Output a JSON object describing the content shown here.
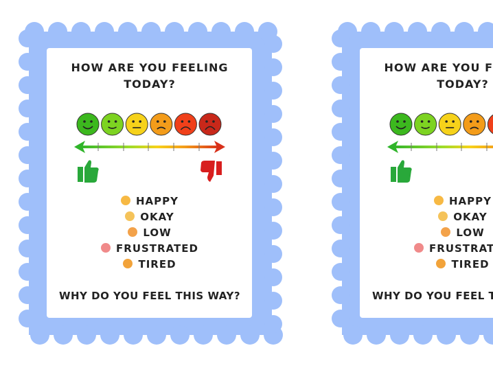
{
  "cards": [
    {
      "title": "HOW ARE YOU FEELING TODAY?",
      "feelings": [
        "HAPPY",
        "OKAY",
        "LOW",
        "FRUSTRATED",
        "TIRED"
      ],
      "question": "WHY DO YOU FEEL THIS WAY?"
    }
  ]
}
